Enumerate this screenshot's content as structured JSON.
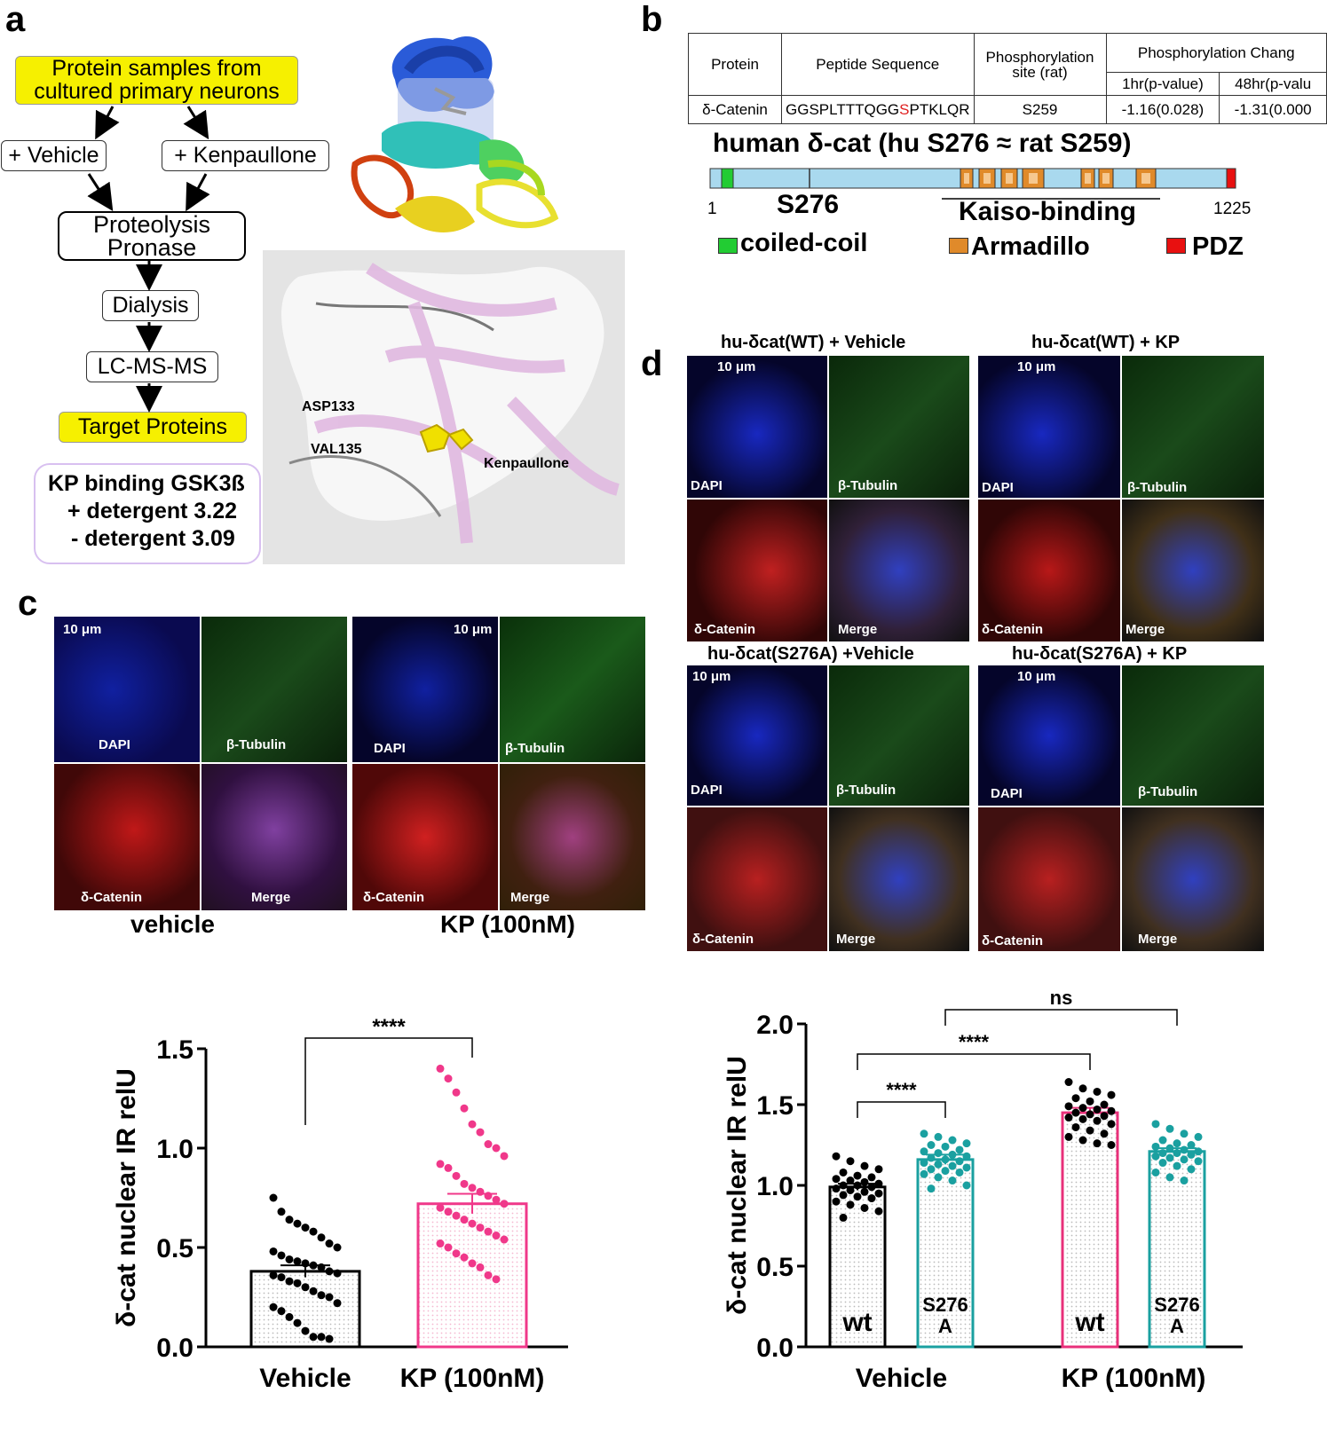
{
  "panels": {
    "a": "a",
    "b": "b",
    "c": "c",
    "d": "d"
  },
  "panel_a": {
    "flow": {
      "samples": "Protein samples from cultured primary neurons",
      "vehicle": "+ Vehicle",
      "kenpaullone": "+ Kenpaullone",
      "proteolysis": "Proteolysis Pronase",
      "dialysis": "Dialysis",
      "lcms": "LC-MS-MS",
      "target": "Target Proteins"
    },
    "kp_binding": {
      "title": "KP binding GSK3ß",
      "line1": "+ detergent 3.22",
      "line2": "- detergent 3.09"
    },
    "structure_labels": {
      "asp": "ASP133",
      "val": "VAL135",
      "ligand": "Kenpaullone"
    }
  },
  "panel_b": {
    "table": {
      "headers": [
        "Protein",
        "Peptide Sequence",
        "Phosphorylation site (rat)",
        "Phosphorylation Chang"
      ],
      "subheaders": [
        "1hr(p-value)",
        "48hr(p-valu"
      ],
      "row": {
        "protein": "δ-Catenin",
        "seq_pre": "GGSPLTTTQGG",
        "seq_site": "S",
        "seq_post": "PTKLQR",
        "site": "S259",
        "h1": "-1.16(0.028)",
        "h48": "-1.31(0.000"
      }
    },
    "domain_title": "human δ-cat  (hu S276 ≈ rat S259)",
    "pos_start": "1",
    "pos_end": "1225",
    "site_label": "S276",
    "kaiso": "Kaiso-binding",
    "legend": {
      "coiled": "coiled-coil",
      "arm": "Armadillo",
      "pdz": "PDZ"
    },
    "colors": {
      "bar": "#a9d9ee",
      "coiled": "#22cc33",
      "arm": "#e08a2a",
      "pdz": "#e81010"
    }
  },
  "panel_c": {
    "scale": "10 μm",
    "channels": {
      "dapi": "DAPI",
      "tub": "β-Tubulin",
      "cat": "δ-Catenin",
      "merge": "Merge"
    },
    "captions": {
      "vehicle": "vehicle",
      "kp": "KP (100nM)"
    }
  },
  "panel_d": {
    "scale": "10 μm",
    "titles": {
      "wt_veh": "hu-δcat(WT) + Vehicle",
      "wt_kp": "hu-δcat(WT) + KP",
      "mut_veh": "hu-δcat(S276A) +Vehicle",
      "mut_kp": "hu-δcat(S276A) + KP"
    }
  },
  "chart_data": [
    {
      "type": "bar",
      "ylabel": "δ-cat nuclear IR relU",
      "ylim": [
        0,
        1.5
      ],
      "yticks": [
        "0.0",
        "0.5",
        "1.0",
        "1.5"
      ],
      "categories": [
        "Vehicle",
        "KP (100nM)"
      ],
      "values": [
        0.38,
        0.72
      ],
      "sem": [
        0.03,
        0.05
      ],
      "colors": [
        "#000000",
        "#f0388a"
      ],
      "points": [
        [
          0.75,
          0.68,
          0.64,
          0.62,
          0.6,
          0.58,
          0.55,
          0.52,
          0.5,
          0.48,
          0.46,
          0.44,
          0.43,
          0.42,
          0.41,
          0.4,
          0.38,
          0.37,
          0.36,
          0.35,
          0.33,
          0.32,
          0.3,
          0.28,
          0.26,
          0.25,
          0.22,
          0.2,
          0.18,
          0.15,
          0.12,
          0.08,
          0.05,
          0.05,
          0.04
        ],
        [
          1.4,
          1.35,
          1.28,
          1.2,
          1.12,
          1.08,
          1.02,
          1.0,
          0.96,
          0.92,
          0.9,
          0.86,
          0.82,
          0.8,
          0.78,
          0.76,
          0.74,
          0.72,
          0.7,
          0.68,
          0.66,
          0.64,
          0.62,
          0.6,
          0.58,
          0.56,
          0.54,
          0.52,
          0.5,
          0.47,
          0.45,
          0.42,
          0.4,
          0.36,
          0.34
        ]
      ],
      "significance": [
        {
          "from": 0,
          "to": 1,
          "label": "****"
        }
      ]
    },
    {
      "type": "bar",
      "ylabel": "δ-cat nuclear IR relU",
      "ylim": [
        0,
        2.0
      ],
      "yticks": [
        "0.0",
        "0.5",
        "1.0",
        "1.5",
        "2.0"
      ],
      "groups": [
        "Vehicle",
        "KP (100nM)"
      ],
      "bar_labels": [
        "wt",
        "S276 A",
        "wt",
        "S276 A"
      ],
      "values": [
        0.99,
        1.16,
        1.45,
        1.21
      ],
      "sem": [
        0.02,
        0.03,
        0.03,
        0.02
      ],
      "colors": [
        "#000000",
        "#1aa0a0",
        "#e8307a",
        "#1aa0a0"
      ],
      "points": [
        [
          1.18,
          1.15,
          1.12,
          1.1,
          1.08,
          1.06,
          1.05,
          1.04,
          1.03,
          1.02,
          1.01,
          1.0,
          1.0,
          0.99,
          0.98,
          0.97,
          0.96,
          0.95,
          0.94,
          0.93,
          0.92,
          0.9,
          0.88,
          0.86,
          0.84,
          0.8
        ],
        [
          1.32,
          1.3,
          1.28,
          1.26,
          1.25,
          1.24,
          1.22,
          1.21,
          1.2,
          1.19,
          1.18,
          1.17,
          1.16,
          1.15,
          1.14,
          1.13,
          1.12,
          1.11,
          1.1,
          1.09,
          1.08,
          1.07,
          1.05,
          1.03,
          1.0,
          0.98
        ],
        [
          1.64,
          1.6,
          1.58,
          1.56,
          1.54,
          1.52,
          1.5,
          1.49,
          1.48,
          1.47,
          1.46,
          1.45,
          1.44,
          1.43,
          1.42,
          1.41,
          1.4,
          1.38,
          1.36,
          1.34,
          1.32,
          1.3,
          1.28,
          1.26,
          1.25
        ],
        [
          1.38,
          1.35,
          1.32,
          1.3,
          1.28,
          1.26,
          1.25,
          1.24,
          1.23,
          1.22,
          1.21,
          1.2,
          1.2,
          1.19,
          1.18,
          1.17,
          1.16,
          1.15,
          1.14,
          1.12,
          1.1,
          1.08,
          1.05,
          1.03
        ]
      ],
      "significance": [
        {
          "from": 0,
          "to": 1,
          "label": "****"
        },
        {
          "from": 0,
          "to": 2,
          "label": "****"
        },
        {
          "from": 1,
          "to": 3,
          "label": "ns"
        }
      ]
    }
  ]
}
